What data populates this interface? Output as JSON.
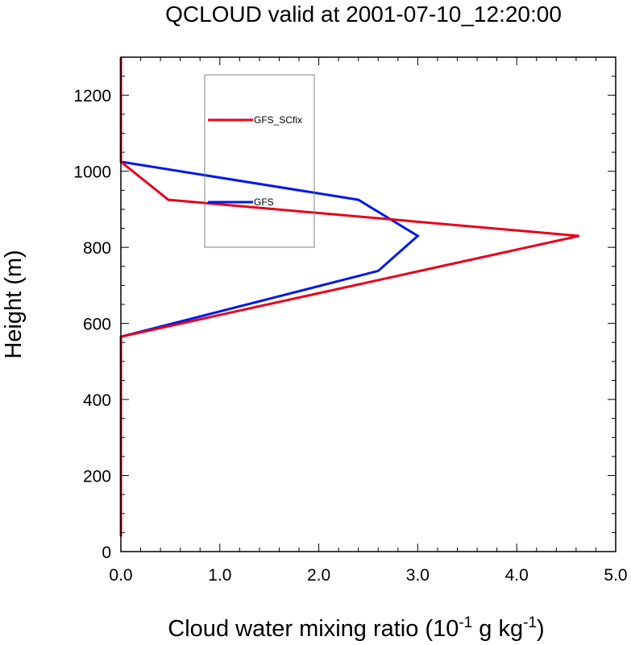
{
  "chart_data": {
    "type": "line",
    "title": "QCLOUD valid at 2001-07-10_12:20:00",
    "xlabel": {
      "prefix": "Cloud water mixing ratio (10",
      "exp1": "-1",
      "middle": " g kg",
      "exp2": "-1",
      "suffix": ")"
    },
    "ylabel": "Height (m)",
    "xlim": [
      0,
      5
    ],
    "ylim": [
      0,
      1300
    ],
    "x_ticks": [
      "0.0",
      "1.0",
      "2.0",
      "3.0",
      "4.0",
      "5.0"
    ],
    "y_ticks": [
      "0",
      "200",
      "400",
      "600",
      "800",
      "1000",
      "1200"
    ],
    "legend": {
      "placement": "top-center",
      "entries": [
        "GFS_SCfix",
        "GFS"
      ]
    },
    "series": [
      {
        "name": "GFS_SCfix",
        "color": "#e8001c",
        "points": [
          [
            0,
            40
          ],
          [
            0,
            565
          ],
          [
            4.63,
            830
          ],
          [
            0.48,
            925
          ],
          [
            0,
            1025
          ],
          [
            0,
            1300
          ]
        ]
      },
      {
        "name": "GFS",
        "color": "#0018e8",
        "points": [
          [
            0,
            565
          ],
          [
            2.6,
            738
          ],
          [
            3.0,
            830
          ],
          [
            2.4,
            925
          ],
          [
            0,
            1025
          ]
        ]
      }
    ]
  }
}
